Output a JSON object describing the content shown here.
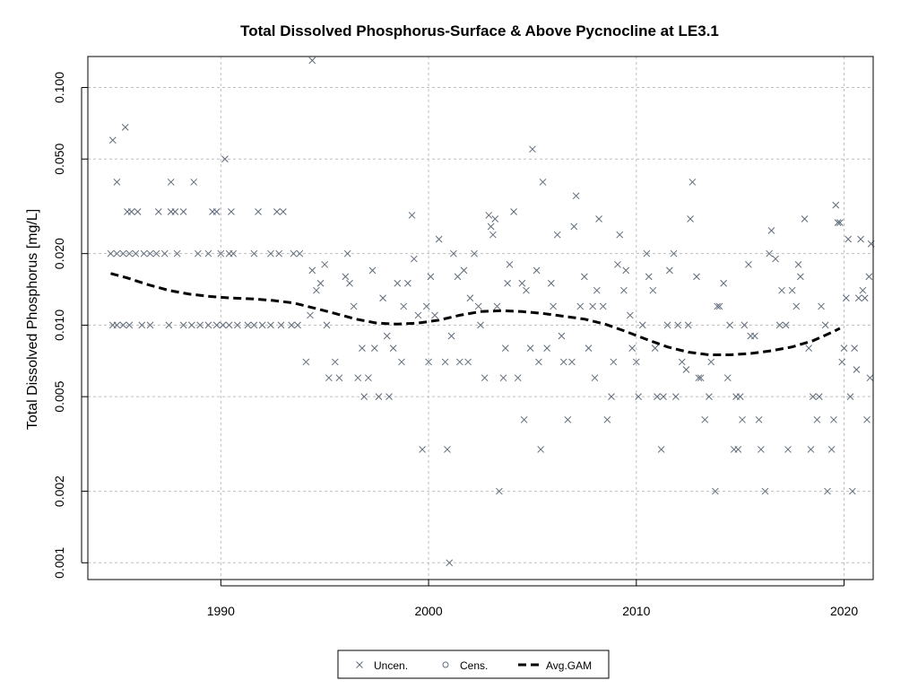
{
  "chart_data": {
    "type": "scatter",
    "title": "Total Dissolved Phosphorus-Surface & Above Pycnocline at LE3.1",
    "ylabel": "Total Dissolved Phosphorus [mg/L]",
    "xlabel": "",
    "y_scale": "log",
    "xlim": [
      1983.6,
      2021.4
    ],
    "ylim": [
      0.00085,
      0.135
    ],
    "x_ticks": [
      1990,
      2000,
      2010,
      2020
    ],
    "x_tick_labels": [
      "1990",
      "2000",
      "2010",
      "2020"
    ],
    "y_ticks": [
      0.001,
      0.002,
      0.005,
      0.01,
      0.02,
      0.05,
      0.1
    ],
    "y_tick_labels": [
      "0.001",
      "0.002",
      "0.005",
      "0.010",
      "0.020",
      "0.050",
      "0.100"
    ],
    "grid": true,
    "legend_position": "bottom",
    "series": [
      {
        "name": "Uncen.",
        "marker": "x",
        "color": "#5f6b7a",
        "points": [
          [
            1984.8,
            0.06
          ],
          [
            1985.0,
            0.04
          ],
          [
            1985.4,
            0.068
          ],
          [
            1984.7,
            0.02
          ],
          [
            1985.0,
            0.02
          ],
          [
            1985.3,
            0.02
          ],
          [
            1985.6,
            0.02
          ],
          [
            1985.9,
            0.02
          ],
          [
            1985.5,
            0.03
          ],
          [
            1985.7,
            0.03
          ],
          [
            1986.0,
            0.03
          ],
          [
            1987.0,
            0.03
          ],
          [
            1987.6,
            0.03
          ],
          [
            1987.8,
            0.03
          ],
          [
            1988.2,
            0.03
          ],
          [
            1989.6,
            0.03
          ],
          [
            1989.8,
            0.03
          ],
          [
            1990.5,
            0.03
          ],
          [
            1991.8,
            0.03
          ],
          [
            1992.7,
            0.03
          ],
          [
            1993.0,
            0.03
          ],
          [
            1987.6,
            0.04
          ],
          [
            1988.7,
            0.04
          ],
          [
            1990.2,
            0.05
          ],
          [
            1986.3,
            0.02
          ],
          [
            1986.6,
            0.02
          ],
          [
            1986.9,
            0.02
          ],
          [
            1987.3,
            0.02
          ],
          [
            1987.9,
            0.02
          ],
          [
            1988.9,
            0.02
          ],
          [
            1989.4,
            0.02
          ],
          [
            1990.0,
            0.02
          ],
          [
            1990.4,
            0.02
          ],
          [
            1990.6,
            0.02
          ],
          [
            1991.6,
            0.02
          ],
          [
            1992.4,
            0.02
          ],
          [
            1992.8,
            0.02
          ],
          [
            1993.5,
            0.02
          ],
          [
            1993.8,
            0.02
          ],
          [
            1984.8,
            0.01
          ],
          [
            1985.0,
            0.01
          ],
          [
            1985.3,
            0.01
          ],
          [
            1985.6,
            0.01
          ],
          [
            1986.2,
            0.01
          ],
          [
            1986.6,
            0.01
          ],
          [
            1987.5,
            0.01
          ],
          [
            1988.2,
            0.01
          ],
          [
            1988.6,
            0.01
          ],
          [
            1989.0,
            0.01
          ],
          [
            1989.4,
            0.01
          ],
          [
            1989.8,
            0.01
          ],
          [
            1990.1,
            0.01
          ],
          [
            1990.4,
            0.01
          ],
          [
            1990.8,
            0.01
          ],
          [
            1991.3,
            0.01
          ],
          [
            1991.6,
            0.01
          ],
          [
            1992.0,
            0.01
          ],
          [
            1992.4,
            0.01
          ],
          [
            1992.9,
            0.01
          ],
          [
            1993.4,
            0.01
          ],
          [
            1993.7,
            0.01
          ],
          [
            1994.4,
            0.13
          ],
          [
            1994.1,
            0.007
          ],
          [
            1994.3,
            0.011
          ],
          [
            1994.4,
            0.017
          ],
          [
            1994.6,
            0.014
          ],
          [
            1994.8,
            0.015
          ],
          [
            1995.0,
            0.018
          ],
          [
            1995.1,
            0.01
          ],
          [
            1995.2,
            0.006
          ],
          [
            1995.5,
            0.007
          ],
          [
            1995.7,
            0.006
          ],
          [
            1996.0,
            0.016
          ],
          [
            1996.1,
            0.02
          ],
          [
            1996.2,
            0.015
          ],
          [
            1996.4,
            0.012
          ],
          [
            1996.6,
            0.006
          ],
          [
            1996.8,
            0.008
          ],
          [
            1996.9,
            0.005
          ],
          [
            1997.1,
            0.006
          ],
          [
            1997.3,
            0.017
          ],
          [
            1997.4,
            0.008
          ],
          [
            1997.6,
            0.005
          ],
          [
            1997.8,
            0.013
          ],
          [
            1998.0,
            0.009
          ],
          [
            1998.1,
            0.005
          ],
          [
            1998.3,
            0.008
          ],
          [
            1998.5,
            0.015
          ],
          [
            1998.7,
            0.007
          ],
          [
            1998.8,
            0.012
          ],
          [
            1999.0,
            0.015
          ],
          [
            1999.2,
            0.029
          ],
          [
            1999.3,
            0.019
          ],
          [
            1999.5,
            0.011
          ],
          [
            1999.7,
            0.003
          ],
          [
            1999.9,
            0.012
          ],
          [
            2000.0,
            0.007
          ],
          [
            2000.1,
            0.016
          ],
          [
            2000.3,
            0.011
          ],
          [
            2000.5,
            0.023
          ],
          [
            2000.8,
            0.007
          ],
          [
            2001.0,
            0.001
          ],
          [
            2000.9,
            0.003
          ],
          [
            2001.1,
            0.009
          ],
          [
            2001.2,
            0.02
          ],
          [
            2001.4,
            0.016
          ],
          [
            2001.5,
            0.007
          ],
          [
            2001.7,
            0.017
          ],
          [
            2001.9,
            0.007
          ],
          [
            2002.0,
            0.013
          ],
          [
            2002.2,
            0.02
          ],
          [
            2002.4,
            0.012
          ],
          [
            2002.5,
            0.01
          ],
          [
            2002.7,
            0.006
          ],
          [
            2002.9,
            0.029
          ],
          [
            2003.0,
            0.026
          ],
          [
            2003.1,
            0.024
          ],
          [
            2003.2,
            0.028
          ],
          [
            2003.3,
            0.012
          ],
          [
            2003.4,
            0.002
          ],
          [
            2003.6,
            0.006
          ],
          [
            2003.7,
            0.008
          ],
          [
            2003.8,
            0.015
          ],
          [
            2003.9,
            0.018
          ],
          [
            2004.1,
            0.03
          ],
          [
            2004.3,
            0.006
          ],
          [
            2004.5,
            0.015
          ],
          [
            2004.6,
            0.004
          ],
          [
            2004.7,
            0.014
          ],
          [
            2004.9,
            0.008
          ],
          [
            2005.0,
            0.055
          ],
          [
            2005.2,
            0.017
          ],
          [
            2005.3,
            0.007
          ],
          [
            2005.4,
            0.003
          ],
          [
            2005.5,
            0.04
          ],
          [
            2005.7,
            0.008
          ],
          [
            2005.9,
            0.015
          ],
          [
            2006.0,
            0.012
          ],
          [
            2006.2,
            0.024
          ],
          [
            2006.4,
            0.009
          ],
          [
            2006.5,
            0.007
          ],
          [
            2006.7,
            0.004
          ],
          [
            2006.9,
            0.007
          ],
          [
            2007.0,
            0.026
          ],
          [
            2007.1,
            0.035
          ],
          [
            2007.3,
            0.012
          ],
          [
            2007.5,
            0.016
          ],
          [
            2007.7,
            0.008
          ],
          [
            2007.9,
            0.012
          ],
          [
            2008.0,
            0.006
          ],
          [
            2008.1,
            0.014
          ],
          [
            2008.2,
            0.028
          ],
          [
            2008.4,
            0.012
          ],
          [
            2008.6,
            0.004
          ],
          [
            2008.8,
            0.005
          ],
          [
            2008.9,
            0.007
          ],
          [
            2009.1,
            0.018
          ],
          [
            2009.2,
            0.024
          ],
          [
            2009.4,
            0.014
          ],
          [
            2009.5,
            0.017
          ],
          [
            2009.7,
            0.011
          ],
          [
            2009.8,
            0.008
          ],
          [
            2010.0,
            0.007
          ],
          [
            2010.1,
            0.005
          ],
          [
            2010.3,
            0.01
          ],
          [
            2010.5,
            0.02
          ],
          [
            2010.6,
            0.016
          ],
          [
            2010.8,
            0.014
          ],
          [
            2010.9,
            0.008
          ],
          [
            2011.0,
            0.005
          ],
          [
            2011.2,
            0.003
          ],
          [
            2011.3,
            0.005
          ],
          [
            2011.5,
            0.01
          ],
          [
            2011.6,
            0.017
          ],
          [
            2011.8,
            0.02
          ],
          [
            2011.9,
            0.005
          ],
          [
            2012.0,
            0.01
          ],
          [
            2012.2,
            0.007
          ],
          [
            2012.4,
            0.0065
          ],
          [
            2012.5,
            0.01
          ],
          [
            2012.6,
            0.028
          ],
          [
            2012.7,
            0.04
          ],
          [
            2012.9,
            0.016
          ],
          [
            2013.0,
            0.006
          ],
          [
            2013.1,
            0.006
          ],
          [
            2013.3,
            0.004
          ],
          [
            2013.5,
            0.005
          ],
          [
            2013.6,
            0.007
          ],
          [
            2013.8,
            0.002
          ],
          [
            2013.9,
            0.012
          ],
          [
            2014.0,
            0.012
          ],
          [
            2014.2,
            0.015
          ],
          [
            2014.4,
            0.006
          ],
          [
            2014.5,
            0.01
          ],
          [
            2014.7,
            0.003
          ],
          [
            2014.8,
            0.005
          ],
          [
            2014.9,
            0.003
          ],
          [
            2015.0,
            0.005
          ],
          [
            2015.1,
            0.004
          ],
          [
            2015.2,
            0.01
          ],
          [
            2015.4,
            0.018
          ],
          [
            2015.5,
            0.009
          ],
          [
            2015.7,
            0.009
          ],
          [
            2015.9,
            0.004
          ],
          [
            2016.0,
            0.003
          ],
          [
            2016.2,
            0.002
          ],
          [
            2016.4,
            0.02
          ],
          [
            2016.5,
            0.025
          ],
          [
            2016.7,
            0.019
          ],
          [
            2016.9,
            0.01
          ],
          [
            2017.0,
            0.014
          ],
          [
            2017.2,
            0.01
          ],
          [
            2017.3,
            0.003
          ],
          [
            2017.5,
            0.014
          ],
          [
            2017.7,
            0.012
          ],
          [
            2017.8,
            0.018
          ],
          [
            2017.9,
            0.016
          ],
          [
            2018.1,
            0.028
          ],
          [
            2018.3,
            0.008
          ],
          [
            2018.4,
            0.003
          ],
          [
            2018.5,
            0.005
          ],
          [
            2018.7,
            0.004
          ],
          [
            2018.8,
            0.005
          ],
          [
            2018.9,
            0.012
          ],
          [
            2019.1,
            0.01
          ],
          [
            2019.2,
            0.002
          ],
          [
            2019.4,
            0.003
          ],
          [
            2019.5,
            0.004
          ],
          [
            2019.6,
            0.032
          ],
          [
            2019.7,
            0.027
          ],
          [
            2019.8,
            0.027
          ],
          [
            2019.9,
            0.007
          ],
          [
            2020.0,
            0.008
          ],
          [
            2020.1,
            0.013
          ],
          [
            2020.2,
            0.023
          ],
          [
            2020.3,
            0.005
          ],
          [
            2020.4,
            0.002
          ],
          [
            2020.5,
            0.008
          ],
          [
            2020.6,
            0.0065
          ],
          [
            2020.7,
            0.013
          ],
          [
            2020.8,
            0.023
          ],
          [
            2020.9,
            0.014
          ],
          [
            2021.0,
            0.013
          ],
          [
            2021.1,
            0.004
          ],
          [
            2021.2,
            0.016
          ],
          [
            2021.25,
            0.006
          ],
          [
            2021.3,
            0.022
          ]
        ]
      },
      {
        "name": "Cens.",
        "marker": "o",
        "color": "#5f6b7a",
        "points": []
      },
      {
        "name": "Avg.GAM",
        "marker": "dashed-line",
        "color": "#000000",
        "points": [
          [
            1984.7,
            0.0165
          ],
          [
            1985.5,
            0.0158
          ],
          [
            1986.5,
            0.0148
          ],
          [
            1987.5,
            0.014
          ],
          [
            1988.5,
            0.0135
          ],
          [
            1989.5,
            0.0132
          ],
          [
            1990.5,
            0.013
          ],
          [
            1991.5,
            0.0129
          ],
          [
            1992.5,
            0.0127
          ],
          [
            1993.5,
            0.0124
          ],
          [
            1994.5,
            0.0118
          ],
          [
            1995.5,
            0.0112
          ],
          [
            1996.5,
            0.0106
          ],
          [
            1997.5,
            0.0102
          ],
          [
            1998.5,
            0.0101
          ],
          [
            1999.5,
            0.0102
          ],
          [
            2000.5,
            0.0105
          ],
          [
            2001.5,
            0.011
          ],
          [
            2002.5,
            0.0114
          ],
          [
            2003.5,
            0.0115
          ],
          [
            2004.5,
            0.0114
          ],
          [
            2005.5,
            0.0112
          ],
          [
            2006.5,
            0.0109
          ],
          [
            2007.5,
            0.0106
          ],
          [
            2008.5,
            0.0101
          ],
          [
            2009.5,
            0.0094
          ],
          [
            2010.5,
            0.0087
          ],
          [
            2011.5,
            0.0081
          ],
          [
            2012.5,
            0.0077
          ],
          [
            2013.5,
            0.0075
          ],
          [
            2014.5,
            0.0075
          ],
          [
            2015.5,
            0.0076
          ],
          [
            2016.5,
            0.0078
          ],
          [
            2017.5,
            0.0081
          ],
          [
            2018.5,
            0.0086
          ],
          [
            2019.5,
            0.0094
          ],
          [
            2019.8,
            0.0097
          ]
        ]
      }
    ]
  }
}
